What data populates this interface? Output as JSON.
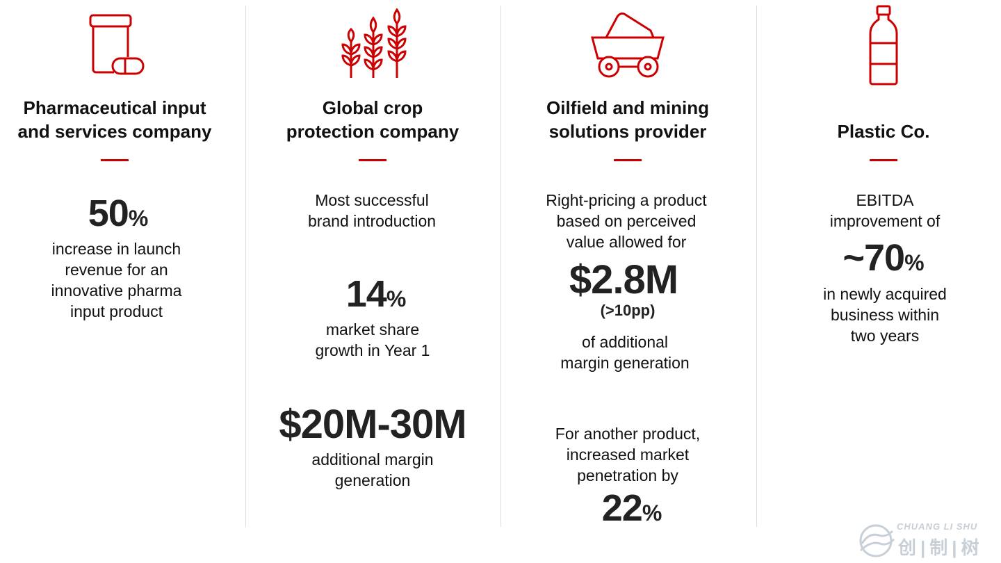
{
  "colors": {
    "accent": "#cc0000",
    "text": "#111111",
    "divider": "#dcdcdc"
  },
  "columns": [
    {
      "icon": "pill-jar-icon",
      "title_line1": "Pharmaceutical input",
      "title_line2": "and services company",
      "big1_value": "50",
      "big1_unit": "%",
      "desc1": [
        "increase in launch",
        "revenue for an",
        "innovative pharma",
        "input product"
      ]
    },
    {
      "icon": "wheat-icon",
      "title_line1": "Global crop",
      "title_line2": "protection company",
      "intro": [
        "Most successful",
        "brand introduction"
      ],
      "big1_value": "14",
      "big1_unit": "%",
      "desc1": [
        "market share",
        "growth in Year 1"
      ],
      "big2_value": "$20M-30M",
      "desc2": [
        "additional margin",
        "generation"
      ]
    },
    {
      "icon": "mining-cart-icon",
      "title_line1": "Oilfield and mining",
      "title_line2": "solutions provider",
      "intro": [
        "Right-pricing a product",
        "based on perceived",
        "value allowed for"
      ],
      "big1_value": "$2.8M",
      "big1_sub": "(>10pp)",
      "desc1": [
        "of additional",
        "margin generation"
      ],
      "intro2": [
        "For another product,",
        "increased market",
        "penetration by"
      ],
      "big2_value": "22",
      "big2_unit": "%"
    },
    {
      "icon": "plastic-bottle-icon",
      "title_line2": "Plastic Co.",
      "intro": [
        "EBITDA",
        "improvement of"
      ],
      "big1_value": "~70",
      "big1_unit": "%",
      "desc1": [
        "in newly acquired",
        "business within",
        "two years"
      ]
    }
  ],
  "watermark": {
    "en": "CHUANG LI SHU",
    "cn": "创|制|树"
  }
}
